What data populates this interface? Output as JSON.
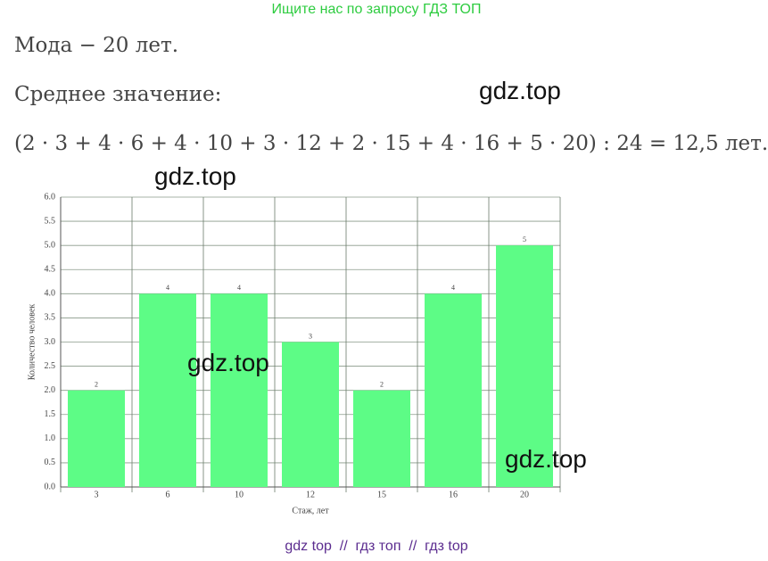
{
  "header": {
    "banner": "Ищите нас по запросу ГДЗ ТОП"
  },
  "text": {
    "mode": "Мода − 20 лет.",
    "mean_label": "Среднее значение:",
    "formula": "(2 · 3 + 4 · 6 + 4 · 10 + 3 · 12 + 2 · 15 + 4 · 16 + 5 · 20) : 24 = 12,5 лет."
  },
  "chart_data": {
    "type": "bar",
    "categories": [
      "3",
      "6",
      "10",
      "12",
      "15",
      "16",
      "20"
    ],
    "values": [
      2,
      4,
      4,
      3,
      2,
      4,
      5
    ],
    "color": "#5dfc86",
    "x_label": "Стаж, лет",
    "y_label": "Количество человек",
    "ylim": [
      0,
      6
    ],
    "yticks": [
      {
        "value": 0,
        "label": "0.0"
      },
      {
        "value": 0.5,
        "label": "0.5"
      },
      {
        "value": 1,
        "label": "1.0"
      },
      {
        "value": 1.5,
        "label": "1.5"
      },
      {
        "value": 2,
        "label": "2.0"
      },
      {
        "value": 2.5,
        "label": "2.5"
      },
      {
        "value": 3,
        "label": "3.0"
      },
      {
        "value": 3.5,
        "label": "3.5"
      },
      {
        "value": 4,
        "label": "4.0"
      },
      {
        "value": 4.5,
        "label": "4.5"
      },
      {
        "value": 5,
        "label": "5.0"
      },
      {
        "value": 5.5,
        "label": "5.5"
      },
      {
        "value": 6,
        "label": "6.0"
      }
    ],
    "grid": true
  },
  "watermarks": [
    "gdz.top",
    "gdz.top",
    "gdz.top",
    "gdz.top"
  ],
  "footer": {
    "text": "gdz top  //  гдз топ  //  гдз top"
  }
}
